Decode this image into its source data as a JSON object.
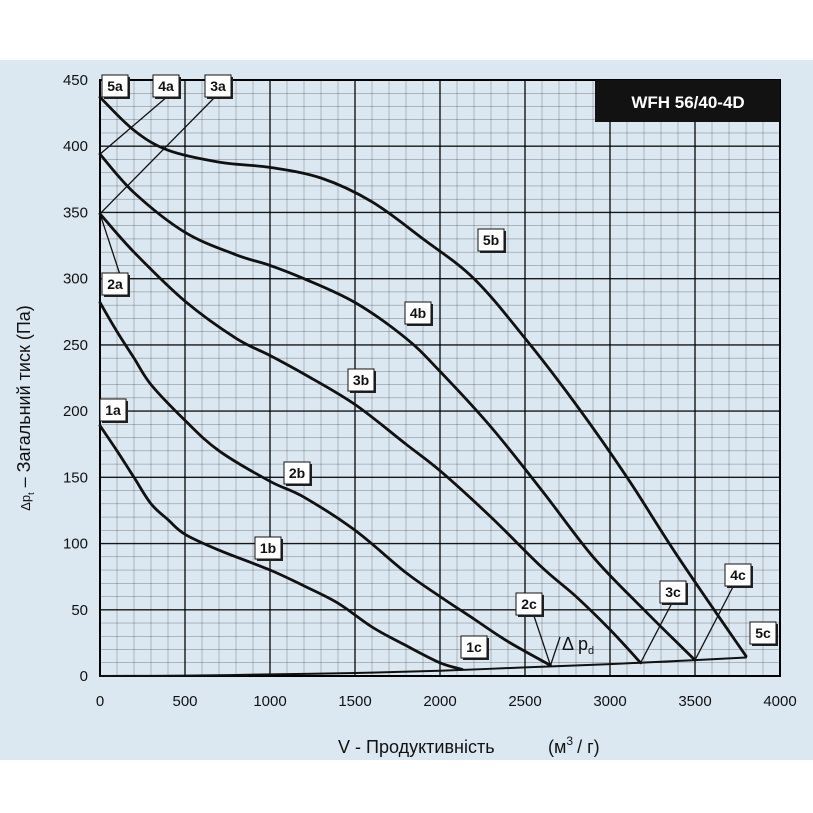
{
  "chart_data": {
    "type": "line",
    "title": "WFH 56/40-4D",
    "xlabel": "V - Продуктивність",
    "xunit_main": "(м",
    "xunit_sup": "3",
    "xunit_end": "/ г)",
    "ylabel_prefix": "Δp",
    "ylabel_sub": "t",
    "ylabel_text": " – Загальний тиск (Па)",
    "xlim": [
      0,
      4000
    ],
    "ylim": [
      0,
      450
    ],
    "xticks": [
      0,
      500,
      1000,
      1500,
      2000,
      2500,
      3000,
      3500,
      4000
    ],
    "yticks": [
      0,
      50,
      100,
      150,
      200,
      250,
      300,
      350,
      400,
      450
    ],
    "grid": true,
    "series": [
      {
        "name": "1",
        "x": [
          0,
          100,
          200,
          300,
          400,
          500,
          700,
          1000,
          1200,
          1400,
          1600,
          1800,
          2000,
          2130
        ],
        "y": [
          189,
          170,
          150,
          130,
          118,
          107,
          95,
          80,
          68,
          55,
          37,
          23,
          10,
          5
        ]
      },
      {
        "name": "2",
        "x": [
          0,
          100,
          200,
          300,
          500,
          700,
          1000,
          1200,
          1500,
          1800,
          2000,
          2200,
          2400,
          2650
        ],
        "y": [
          282,
          260,
          240,
          220,
          193,
          170,
          147,
          135,
          110,
          78,
          60,
          43,
          26,
          8
        ]
      },
      {
        "name": "3",
        "x": [
          0,
          200,
          500,
          800,
          1000,
          1200,
          1500,
          1800,
          2000,
          2300,
          2600,
          2800,
          3000,
          3180
        ],
        "y": [
          349,
          320,
          283,
          255,
          242,
          228,
          205,
          175,
          155,
          120,
          82,
          60,
          35,
          10
        ]
      },
      {
        "name": "4",
        "x": [
          0,
          200,
          500,
          800,
          1000,
          1200,
          1500,
          1800,
          2000,
          2300,
          2600,
          2900,
          3200,
          3500
        ],
        "y": [
          394,
          365,
          335,
          318,
          310,
          300,
          282,
          255,
          230,
          188,
          140,
          90,
          50,
          12
        ]
      },
      {
        "name": "5",
        "x": [
          0,
          200,
          400,
          700,
          1000,
          1300,
          1600,
          1900,
          2200,
          2500,
          2800,
          3100,
          3400,
          3800
        ],
        "y": [
          437,
          412,
          397,
          388,
          384,
          376,
          358,
          330,
          300,
          255,
          205,
          150,
          90,
          15
        ]
      },
      {
        "name": "Δpd",
        "x": [
          0,
          500,
          1000,
          1500,
          2000,
          2500,
          3000,
          3500,
          3800
        ],
        "y": [
          0,
          0.3,
          1.2,
          2.3,
          4,
          6.5,
          9,
          12,
          14
        ]
      }
    ],
    "annotations": [
      {
        "text": "5a",
        "x": 0,
        "y": 437
      },
      {
        "text": "4a",
        "x": 0,
        "y": 394
      },
      {
        "text": "3a",
        "x": 0,
        "y": 349
      },
      {
        "text": "2a",
        "x": 0,
        "y": 282
      },
      {
        "text": "1a",
        "x": 0,
        "y": 189
      },
      {
        "text": "5b",
        "x": 1950,
        "y": 327
      },
      {
        "text": "4b",
        "x": 1580,
        "y": 273
      },
      {
        "text": "3b",
        "x": 1430,
        "y": 214
      },
      {
        "text": "2b",
        "x": 970,
        "y": 147
      },
      {
        "text": "1b",
        "x": 820,
        "y": 90
      },
      {
        "text": "1c",
        "x": 2130,
        "y": 5
      },
      {
        "text": "2c",
        "x": 2650,
        "y": 8
      },
      {
        "text": "3c",
        "x": 3180,
        "y": 10
      },
      {
        "text": "4c",
        "x": 3500,
        "y": 12
      },
      {
        "text": "5c",
        "x": 3800,
        "y": 15
      }
    ],
    "dp_label": {
      "main": "Δ p",
      "sub": "d"
    }
  }
}
